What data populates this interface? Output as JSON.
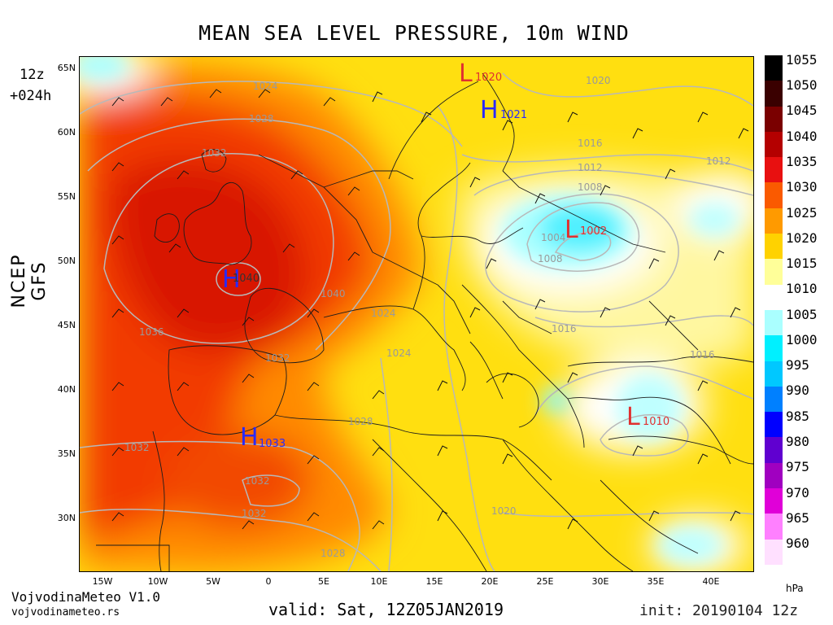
{
  "title": "MEAN SEA LEVEL PRESSURE, 10m WIND",
  "run_hour": "12z",
  "forecast_hour": "+024h",
  "model": "NCEP GFS",
  "valid": "valid: Sat, 12Z05JAN2019",
  "init": "init: 20190104 12z",
  "brand": {
    "name": "VojvodinaMeteo V1.0",
    "url": "vojvodinameteo.rs"
  },
  "unit": "hPa",
  "lat_labels": [
    "65N",
    "60N",
    "55N",
    "50N",
    "45N",
    "40N",
    "35N",
    "30N"
  ],
  "lon_labels": [
    "15W",
    "10W",
    "5W",
    "0",
    "5E",
    "10E",
    "15E",
    "20E",
    "25E",
    "30E",
    "35E",
    "40E"
  ],
  "colorbar": [
    {
      "value": "1055",
      "color": "#000000"
    },
    {
      "value": "1050",
      "color": "#3a0000"
    },
    {
      "value": "1045",
      "color": "#7a0000"
    },
    {
      "value": "1040",
      "color": "#b40000"
    },
    {
      "value": "1035",
      "color": "#e81010"
    },
    {
      "value": "1030",
      "color": "#fa5a00"
    },
    {
      "value": "1025",
      "color": "#ff9a00"
    },
    {
      "value": "1020",
      "color": "#ffd200"
    },
    {
      "value": "1015",
      "color": "#ffff99"
    },
    {
      "value": "1010",
      "color": "#ffffff"
    },
    {
      "value": "1005",
      "color": "#aaffff"
    },
    {
      "value": "1000",
      "color": "#00f0ff"
    },
    {
      "value": "995",
      "color": "#00c8ff"
    },
    {
      "value": "990",
      "color": "#0080ff"
    },
    {
      "value": "985",
      "color": "#0000ff"
    },
    {
      "value": "980",
      "color": "#6000d0"
    },
    {
      "value": "975",
      "color": "#a000c0"
    },
    {
      "value": "970",
      "color": "#e000d8"
    },
    {
      "value": "965",
      "color": "#ff80ff"
    },
    {
      "value": "960",
      "color": "#ffe0ff"
    }
  ],
  "pressure_centers": [
    {
      "type": "H",
      "value": "1040"
    },
    {
      "type": "H",
      "value": "1033"
    },
    {
      "type": "H",
      "value": "1021"
    },
    {
      "type": "L",
      "value": "1020"
    },
    {
      "type": "L",
      "value": "1002"
    },
    {
      "type": "L",
      "value": "1010"
    }
  ],
  "isobar_labels": [
    "1024",
    "1028",
    "1032",
    "1036",
    "1040",
    "1036",
    "1032",
    "1032",
    "1032",
    "1032",
    "1028",
    "1028",
    "1024",
    "1024",
    "1020",
    "1020",
    "1016",
    "1016",
    "1016",
    "1012",
    "1012",
    "1008",
    "1004",
    "1008"
  ]
}
